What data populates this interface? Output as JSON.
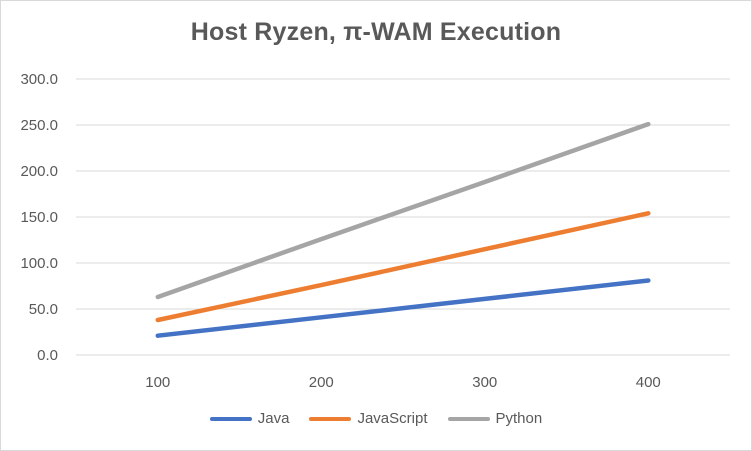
{
  "chart_data": {
    "type": "line",
    "title": "Host Ryzen, π-WAM Execution",
    "xlabel": "",
    "ylabel": "",
    "categories": [
      "100",
      "200",
      "300",
      "400"
    ],
    "ylim": [
      0,
      300
    ],
    "yticks": [
      "0.0",
      "50.0",
      "100.0",
      "150.0",
      "200.0",
      "250.0",
      "300.0"
    ],
    "grid": true,
    "legend_position": "bottom",
    "series": [
      {
        "name": "Java",
        "values": [
          21,
          41,
          61,
          81
        ],
        "color": "#4472c4"
      },
      {
        "name": "JavaScript",
        "values": [
          38,
          76,
          115,
          154
        ],
        "color": "#ed7d31"
      },
      {
        "name": "Python",
        "values": [
          63,
          126,
          188,
          251
        ],
        "color": "#a5a5a5"
      }
    ]
  }
}
